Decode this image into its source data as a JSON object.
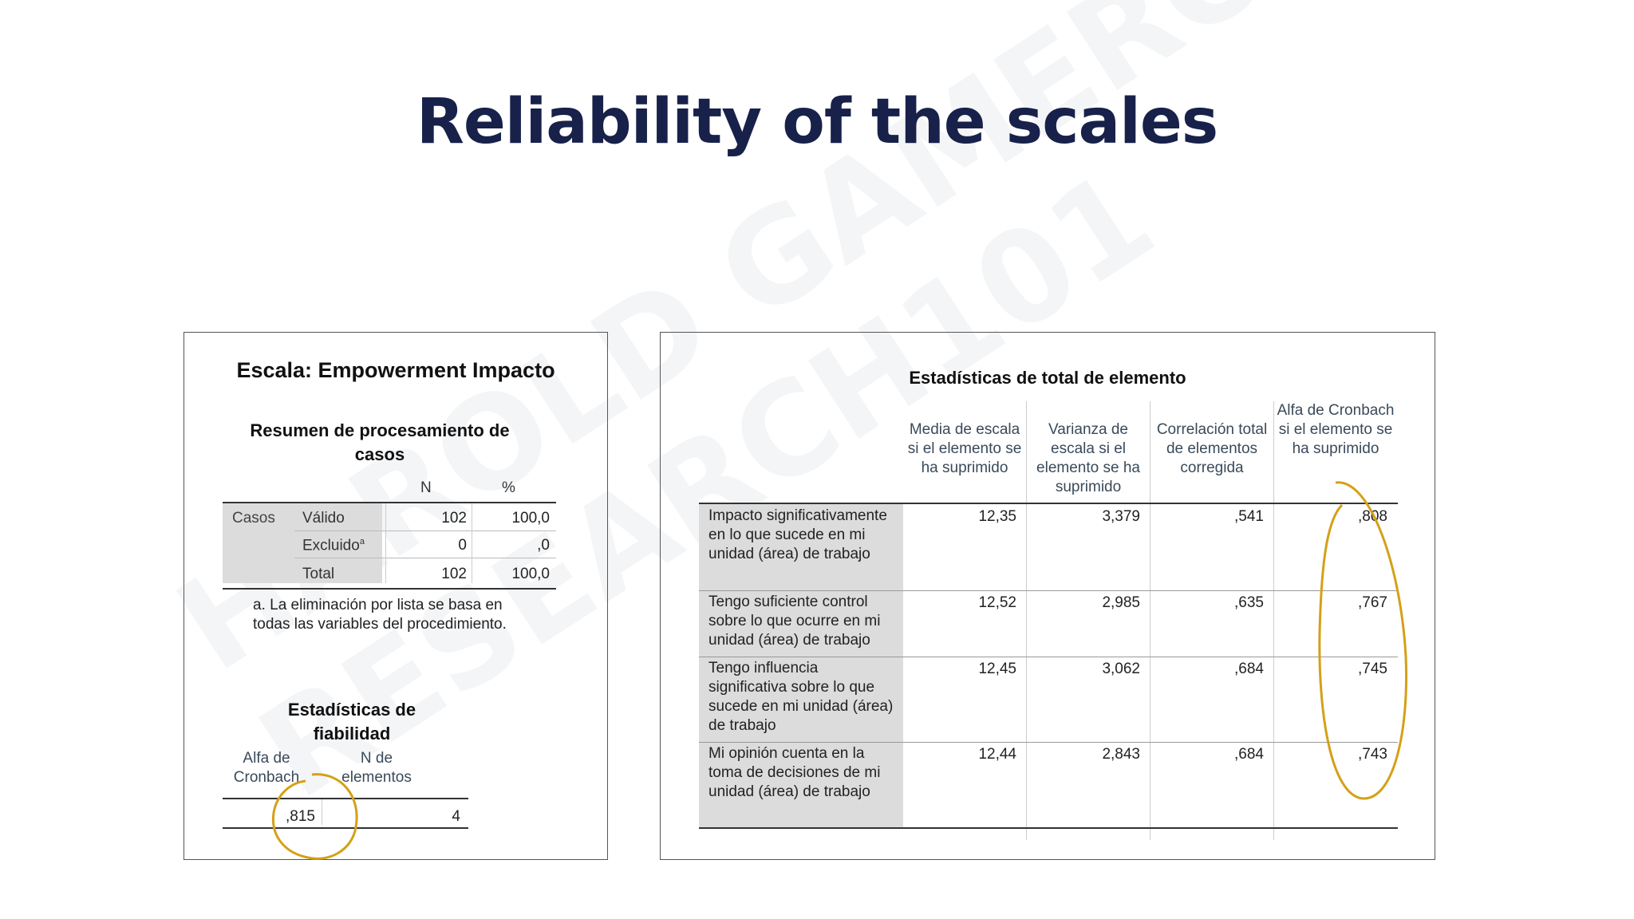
{
  "slide": {
    "title": "Reliability of the scales",
    "watermark": "HAROLD GAMERO\nRESEARCH101"
  },
  "left_panel": {
    "scale_title": "Escala: Empowerment Impacto",
    "summary_title": "Resumen de procesamiento de casos",
    "columns": [
      "N",
      "%"
    ],
    "group_label": "Casos",
    "rows": [
      {
        "label": "Válido",
        "n": "102",
        "pct": "100,0"
      },
      {
        "label": "Excluido",
        "superscript": "a",
        "n": "0",
        "pct": ",0"
      },
      {
        "label": "Total",
        "n": "102",
        "pct": "100,0"
      }
    ],
    "footnote": "a. La eliminación por lista se basa en todas las variables del procedimiento.",
    "reliability_title": "Estadísticas de fiabilidad",
    "reliability_columns": [
      "Alfa de Cronbach",
      "N de elementos"
    ],
    "reliability_values": {
      "alpha": ",815",
      "n_items": "4"
    }
  },
  "right_panel": {
    "title": "Estadísticas de total de elemento",
    "columns": [
      "Media de escala si el elemento se ha suprimido",
      "Varianza de escala si el elemento se ha suprimido",
      "Correlación total de elementos corregida",
      "Alfa de Cronbach si el elemento se ha suprimido"
    ],
    "rows": [
      {
        "item": "Impacto significativamente en lo que sucede en mi unidad (área) de trabajo",
        "values": [
          "12,35",
          "3,379",
          ",541",
          ",808"
        ]
      },
      {
        "item": "Tengo suficiente control sobre lo que ocurre en mi unidad (área) de trabajo",
        "values": [
          "12,52",
          "2,985",
          ",635",
          ",767"
        ]
      },
      {
        "item": "Tengo influencia significativa sobre lo que sucede en mi unidad (área) de trabajo",
        "values": [
          "12,45",
          "3,062",
          ",684",
          ",745"
        ]
      },
      {
        "item": "Mi opinión cuenta en la toma de decisiones de mi unidad (área) de trabajo",
        "values": [
          "12,44",
          "2,843",
          ",684",
          ",743"
        ]
      }
    ]
  },
  "colors": {
    "title": "#17214a",
    "highlight_ring": "#d4a017",
    "shade": "#dcdcdc"
  }
}
